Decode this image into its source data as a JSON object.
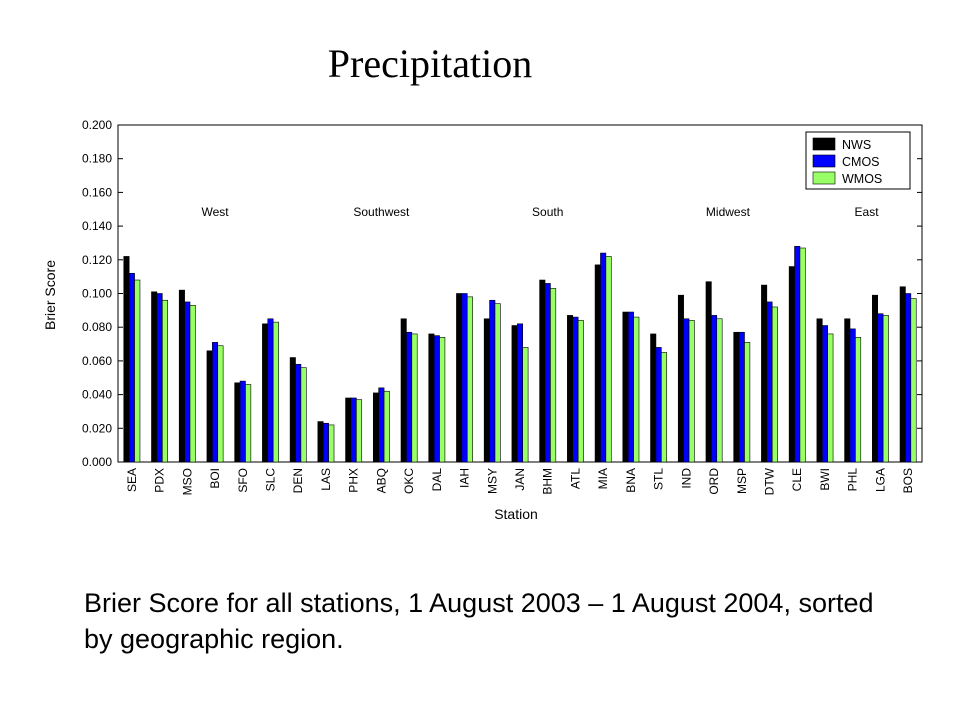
{
  "slide": {
    "title": "Precipitation",
    "caption": "Brier Score for all stations, 1 August 2003 – 1 August 2004, sorted by geographic region."
  },
  "colors": {
    "NWS": "#000000",
    "CMOS": "#0000ff",
    "WMOS": "#99ff66"
  },
  "chart_data": {
    "type": "bar",
    "title": "",
    "xlabel": "Station",
    "ylabel": "Brier Score",
    "ylim": [
      0,
      0.2
    ],
    "yticks": [
      "0.000",
      "0.020",
      "0.040",
      "0.060",
      "0.080",
      "0.100",
      "0.120",
      "0.140",
      "0.160",
      "0.180",
      "0.200"
    ],
    "legend_position": "top-right",
    "grid": false,
    "categories": [
      "SEA",
      "PDX",
      "MSO",
      "BOI",
      "SFO",
      "SLC",
      "DEN",
      "LAS",
      "PHX",
      "ABQ",
      "OKC",
      "DAL",
      "IAH",
      "MSY",
      "JAN",
      "BHM",
      "ATL",
      "MIA",
      "BNA",
      "STL",
      "IND",
      "ORD",
      "MSP",
      "DTW",
      "CLE",
      "BWI",
      "PHL",
      "LGA",
      "BOS"
    ],
    "series": [
      {
        "name": "NWS",
        "values": [
          0.122,
          0.101,
          0.102,
          0.066,
          0.047,
          0.082,
          0.062,
          0.024,
          0.038,
          0.041,
          0.085,
          0.076,
          0.1,
          0.085,
          0.081,
          0.108,
          0.087,
          0.117,
          0.089,
          0.076,
          0.099,
          0.107,
          0.077,
          0.105,
          0.116,
          0.085,
          0.085,
          0.099,
          0.104
        ]
      },
      {
        "name": "CMOS",
        "values": [
          0.112,
          0.1,
          0.095,
          0.071,
          0.048,
          0.085,
          0.058,
          0.023,
          0.038,
          0.044,
          0.077,
          0.075,
          0.1,
          0.096,
          0.082,
          0.106,
          0.086,
          0.124,
          0.089,
          0.068,
          0.085,
          0.087,
          0.077,
          0.095,
          0.128,
          0.081,
          0.079,
          0.088,
          0.1
        ]
      },
      {
        "name": "WMOS",
        "values": [
          0.108,
          0.096,
          0.093,
          0.069,
          0.046,
          0.083,
          0.056,
          0.022,
          0.037,
          0.042,
          0.076,
          0.074,
          0.098,
          0.094,
          0.068,
          0.103,
          0.084,
          0.122,
          0.086,
          0.065,
          0.084,
          0.085,
          0.071,
          0.092,
          0.127,
          0.076,
          0.074,
          0.087,
          0.097
        ]
      }
    ],
    "region_labels": [
      {
        "label": "West",
        "from": "SEA",
        "to": "DEN"
      },
      {
        "label": "Southwest",
        "from": "LAS",
        "to": "DAL"
      },
      {
        "label": "South",
        "from": "IAH",
        "to": "BNA"
      },
      {
        "label": "Midwest",
        "from": "STL",
        "to": "CLE"
      },
      {
        "label": "East",
        "from": "BWI",
        "to": "BOS"
      }
    ],
    "region_label_y": 0.146
  }
}
